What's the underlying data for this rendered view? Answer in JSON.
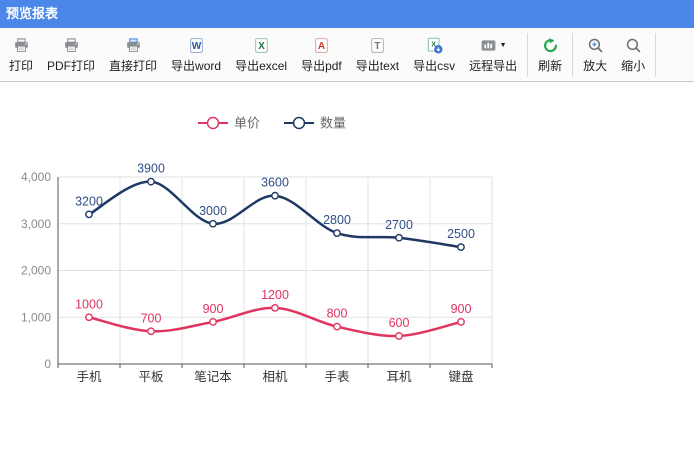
{
  "window": {
    "title": "预览报表"
  },
  "theme": {
    "titlebar_color": "#4a87e8",
    "toolbar_bg": "#fbfbfb",
    "series_price_color": "#e03560",
    "series_qty_color": "#1f3864",
    "refresh_green": "#2aa84e"
  },
  "toolbar": {
    "groups": [
      [
        {
          "id": "print",
          "label": "打印",
          "icon": "printer-icon",
          "has_dropdown": false
        },
        {
          "id": "pdf-print",
          "label": "PDF打印",
          "icon": "printer-icon",
          "has_dropdown": false
        },
        {
          "id": "direct-print",
          "label": "直接打印",
          "icon": "printer-direct-icon",
          "has_dropdown": false
        },
        {
          "id": "export-word",
          "label": "导出word",
          "icon": "word-doc-icon",
          "has_dropdown": false
        },
        {
          "id": "export-excel",
          "label": "导出excel",
          "icon": "excel-doc-icon",
          "has_dropdown": false
        },
        {
          "id": "export-pdf",
          "label": "导出pdf",
          "icon": "pdf-doc-icon",
          "has_dropdown": false
        },
        {
          "id": "export-text",
          "label": "导出text",
          "icon": "text-doc-icon",
          "has_dropdown": false
        },
        {
          "id": "export-csv",
          "label": "导出csv",
          "icon": "csv-doc-icon",
          "has_dropdown": false
        },
        {
          "id": "remote-export",
          "label": "远程导出",
          "icon": "monitor-chart-icon",
          "has_dropdown": true
        }
      ],
      [
        {
          "id": "refresh",
          "label": "刷新",
          "icon": "refresh-icon",
          "has_dropdown": false
        }
      ],
      [
        {
          "id": "zoom-in",
          "label": "放大",
          "icon": "zoom-in-icon",
          "has_dropdown": false
        },
        {
          "id": "zoom-out",
          "label": "缩小",
          "icon": "zoom-out-icon",
          "has_dropdown": false
        }
      ]
    ]
  },
  "chart_data": {
    "type": "line",
    "smooth": true,
    "grid": true,
    "legend_position": "top",
    "show_point_labels": true,
    "categories": [
      "手机",
      "平板",
      "笔记本",
      "相机",
      "手表",
      "耳机",
      "键盘"
    ],
    "series": [
      {
        "name": "单价",
        "color": "#e03560",
        "label_color": "#e03560",
        "values": [
          1000,
          700,
          900,
          1200,
          800,
          600,
          900
        ]
      },
      {
        "name": "数量",
        "color": "#1f3864",
        "label_color": "#2f4f87",
        "values": [
          3200,
          3900,
          3000,
          3600,
          2800,
          2700,
          2500
        ]
      }
    ],
    "y_axis": {
      "min": 0,
      "max": 4000,
      "tick_interval": 1000,
      "tick_labels": [
        "0",
        "1,000",
        "2,000",
        "3,000",
        "4,000"
      ]
    }
  }
}
